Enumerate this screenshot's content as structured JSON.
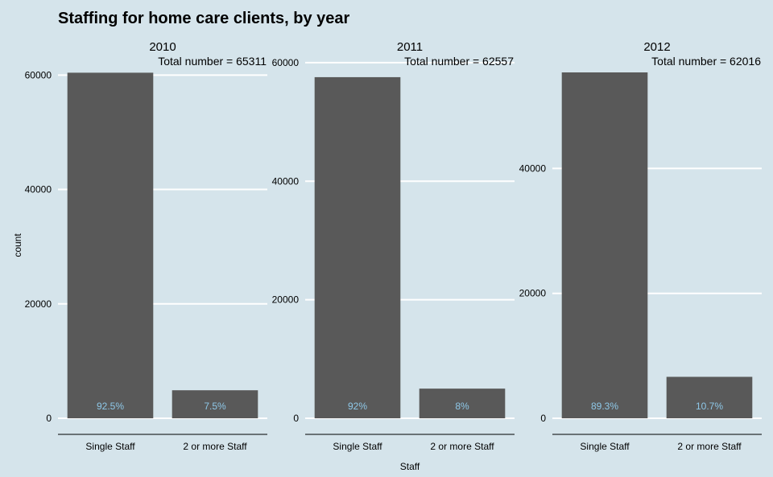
{
  "chart_data": {
    "type": "bar",
    "title": "Staffing for home care clients, by year",
    "xlabel": "Staff",
    "ylabel": "count",
    "categories": [
      "Single Staff",
      "2 or more Staff"
    ],
    "colors": {
      "background": "#d5e4eb",
      "bar": "#595959",
      "label": "#8ec8e8",
      "grid": "#ffffff"
    },
    "panels": [
      {
        "name": "2010",
        "subtitle": "Total number = 65311",
        "values": [
          60413,
          4898
        ],
        "percent_labels": [
          "92.5%",
          "7.5%"
        ],
        "ylim": [
          0,
          63000
        ],
        "yticks": [
          0,
          20000,
          40000,
          60000
        ]
      },
      {
        "name": "2011",
        "subtitle": "Total number = 62557",
        "values": [
          57552,
          5005
        ],
        "percent_labels": [
          "92%",
          "8%"
        ],
        "ylim": [
          0,
          60800
        ],
        "yticks": [
          0,
          20000,
          40000,
          60000
        ]
      },
      {
        "name": "2012",
        "subtitle": "Total number = 62016",
        "values": [
          55380,
          6636
        ],
        "percent_labels": [
          "89.3%",
          "10.7%"
        ],
        "ylim": [
          0,
          57700
        ],
        "yticks": [
          0,
          20000,
          40000
        ]
      }
    ]
  }
}
